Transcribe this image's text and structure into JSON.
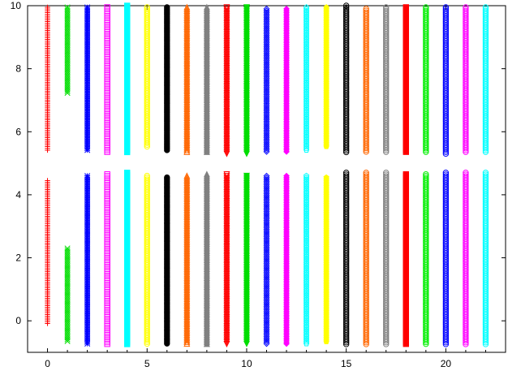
{
  "chart_data": {
    "type": "scatter",
    "title": "",
    "xlabel": "",
    "ylabel": "",
    "xlim": [
      -1,
      23
    ],
    "ylim": [
      -1,
      10
    ],
    "x_ticks": [
      0,
      5,
      10,
      15,
      20
    ],
    "x_tick_labels": [
      "0",
      "5",
      "10",
      "15",
      "20"
    ],
    "y_ticks": [
      0,
      2,
      4,
      6,
      8,
      10
    ],
    "y_tick_labels": [
      "0",
      "2",
      "4",
      "6",
      "8",
      "10"
    ],
    "grid": false,
    "legend": "none",
    "series": [
      {
        "x": 0,
        "color": "#ff0000",
        "marker": "plus",
        "ranges": [
          [
            -0.1,
            4.45
          ],
          [
            5.4,
            9.95
          ]
        ]
      },
      {
        "x": 1,
        "color": "#00dd00",
        "marker": "x",
        "ranges": [
          [
            -0.7,
            2.3
          ],
          [
            7.2,
            9.95
          ]
        ]
      },
      {
        "x": 2,
        "color": "#0000ff",
        "marker": "star",
        "ranges": [
          [
            -0.75,
            4.6
          ],
          [
            5.4,
            9.95
          ]
        ]
      },
      {
        "x": 3,
        "color": "#ff00ff",
        "marker": "square",
        "ranges": [
          [
            -0.75,
            4.65
          ],
          [
            5.35,
            9.95
          ]
        ]
      },
      {
        "x": 4,
        "color": "#00ffff",
        "marker": "square-filled",
        "ranges": [
          [
            -0.75,
            4.7
          ],
          [
            5.3,
            10.0
          ]
        ]
      },
      {
        "x": 5,
        "color": "#ffff00",
        "marker": "circle",
        "ranges": [
          [
            -0.75,
            4.6
          ],
          [
            5.5,
            9.95
          ]
        ]
      },
      {
        "x": 6,
        "color": "#000000",
        "marker": "circle-filled",
        "ranges": [
          [
            -0.75,
            4.55
          ],
          [
            5.4,
            9.95
          ]
        ]
      },
      {
        "x": 7,
        "color": "#ff6600",
        "marker": "triangle",
        "ranges": [
          [
            -0.75,
            4.6
          ],
          [
            5.35,
            9.95
          ]
        ]
      },
      {
        "x": 8,
        "color": "#808080",
        "marker": "triangle-filled",
        "ranges": [
          [
            -0.75,
            4.65
          ],
          [
            5.35,
            9.95
          ]
        ]
      },
      {
        "x": 9,
        "color": "#ff0000",
        "marker": "triangle-down",
        "ranges": [
          [
            -0.75,
            4.65
          ],
          [
            5.3,
            9.95
          ]
        ]
      },
      {
        "x": 10,
        "color": "#00dd00",
        "marker": "triangle-down-filled",
        "ranges": [
          [
            -0.75,
            4.6
          ],
          [
            5.25,
            9.95
          ]
        ]
      },
      {
        "x": 11,
        "color": "#0000ff",
        "marker": "diamond",
        "ranges": [
          [
            -0.75,
            4.6
          ],
          [
            5.35,
            9.9
          ]
        ]
      },
      {
        "x": 12,
        "color": "#ff00ff",
        "marker": "diamond-filled",
        "ranges": [
          [
            -0.75,
            4.6
          ],
          [
            5.35,
            9.9
          ]
        ]
      },
      {
        "x": 13,
        "color": "#00ffff",
        "marker": "pentagon",
        "ranges": [
          [
            -0.75,
            4.6
          ],
          [
            5.4,
            9.95
          ]
        ]
      },
      {
        "x": 14,
        "color": "#ffff00",
        "marker": "pentagon-filled",
        "ranges": [
          [
            -0.7,
            4.55
          ],
          [
            5.5,
            9.95
          ]
        ]
      },
      {
        "x": 15,
        "color": "#000000",
        "marker": "circle",
        "ranges": [
          [
            -0.75,
            4.7
          ],
          [
            5.35,
            10.0
          ]
        ]
      },
      {
        "x": 16,
        "color": "#ff6600",
        "marker": "circle",
        "ranges": [
          [
            -0.75,
            4.7
          ],
          [
            5.35,
            9.9
          ]
        ]
      },
      {
        "x": 17,
        "color": "#808080",
        "marker": "circle",
        "ranges": [
          [
            -0.75,
            4.7
          ],
          [
            5.35,
            9.95
          ]
        ]
      },
      {
        "x": 18,
        "color": "#ff0000",
        "marker": "square-filled",
        "ranges": [
          [
            -0.75,
            4.65
          ],
          [
            5.35,
            9.95
          ]
        ]
      },
      {
        "x": 19,
        "color": "#00ee00",
        "marker": "circle",
        "ranges": [
          [
            -0.75,
            4.65
          ],
          [
            5.35,
            9.95
          ]
        ]
      },
      {
        "x": 20,
        "color": "#0000ff",
        "marker": "circle",
        "ranges": [
          [
            -0.75,
            4.7
          ],
          [
            5.3,
            9.95
          ]
        ]
      },
      {
        "x": 21,
        "color": "#ff00ff",
        "marker": "circle",
        "ranges": [
          [
            -0.75,
            4.7
          ],
          [
            5.35,
            9.95
          ]
        ]
      },
      {
        "x": 22,
        "color": "#00ffff",
        "marker": "circle",
        "ranges": [
          [
            -0.75,
            4.7
          ],
          [
            5.35,
            9.95
          ]
        ]
      }
    ]
  }
}
